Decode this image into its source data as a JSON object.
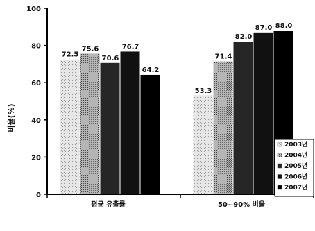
{
  "chart_data": {
    "type": "bar",
    "ylabel": "비율(%)",
    "ylim": [
      0,
      100
    ],
    "yticks": [
      0,
      20,
      40,
      60,
      80,
      100
    ],
    "categories": [
      "평균 유출률",
      "50~90% 비율"
    ],
    "series": [
      {
        "name": "2003년",
        "values": [
          72.5,
          53.3
        ],
        "value_labels": [
          "72.5",
          "53.3"
        ],
        "color": "#d4d4d4"
      },
      {
        "name": "2004년",
        "values": [
          75.6,
          71.4
        ],
        "value_labels": [
          "75.6",
          "71.4"
        ],
        "color": "#a9a9a9"
      },
      {
        "name": "2005년",
        "values": [
          70.6,
          82.0
        ],
        "value_labels": [
          "70.6",
          "82.0"
        ],
        "color": "#262626"
      },
      {
        "name": "2006년",
        "values": [
          76.7,
          87.0
        ],
        "value_labels": [
          "76.7",
          "87.0"
        ],
        "color": "#111111"
      },
      {
        "name": "2007년",
        "values": [
          64.2,
          88.0
        ],
        "value_labels": [
          "64.2",
          "88.0"
        ],
        "color": "#000000"
      }
    ],
    "grid": false,
    "legend_position": "bottom-right"
  }
}
